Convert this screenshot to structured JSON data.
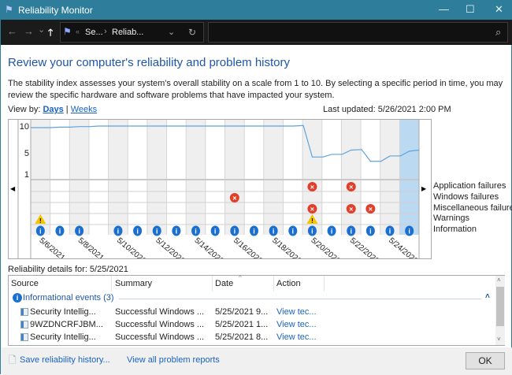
{
  "window": {
    "title": "Reliability Monitor",
    "minimize": "—",
    "maximize": "☐",
    "close": "✕"
  },
  "nav": {
    "back": "←",
    "forward": "→",
    "recent": "⌄",
    "up": "🡑",
    "crumb_sep": "«",
    "crumb1": "Se...",
    "crumb2": "Reliab...",
    "dropdown": "⌄",
    "refresh": "↻",
    "search_icon": "⌕",
    "search_placeholder": ""
  },
  "heading": "Review your computer's reliability and problem history",
  "description": "The stability index assesses your system's overall stability on a scale from 1 to 10. By selecting a specific period in time, you may review the specific hardware and software problems that have impacted your system.",
  "view_by": {
    "label": "View by:",
    "days": "Days",
    "sep": "|",
    "weeks": "Weeks"
  },
  "last_updated": "Last updated: 5/26/2021 2:00 PM",
  "chart_data": {
    "type": "line",
    "y_ticks": [
      "10",
      "5",
      "1"
    ],
    "ylim": [
      0,
      10
    ],
    "dates": [
      "5/6/2021",
      "5/7/2021",
      "5/8/2021",
      "5/9/2021",
      "5/10/2021",
      "5/11/2021",
      "5/12/2021",
      "5/13/2021",
      "5/14/2021",
      "5/15/2021",
      "5/16/2021",
      "5/17/2021",
      "5/18/2021",
      "5/19/2021",
      "5/20/2021",
      "5/21/2021",
      "5/22/2021",
      "5/23/2021",
      "5/24/2021",
      "5/25/2021"
    ],
    "date_labels": [
      "5/6/2021",
      "5/8/2021",
      "5/10/2021",
      "5/12/2021",
      "5/14/2021",
      "5/16/2021",
      "5/18/2021",
      "5/20/2021",
      "5/22/2021",
      "5/24/2021"
    ],
    "stability": [
      9.7,
      9.8,
      9.9,
      10,
      10,
      10,
      10,
      10,
      10,
      10,
      10,
      10,
      10,
      10,
      4.2,
      4.7,
      5.5,
      3.4,
      4.4,
      5.3
    ],
    "selected": "5/25/2021",
    "rows": [
      {
        "label": "Application failures",
        "icon": "error",
        "dates": [
          "5/20/2021",
          "5/22/2021"
        ]
      },
      {
        "label": "Windows failures",
        "icon": "error",
        "dates": [
          "5/16/2021"
        ]
      },
      {
        "label": "Miscellaneous failures",
        "icon": "error",
        "dates": [
          "5/20/2021",
          "5/22/2021",
          "5/23/2021"
        ]
      },
      {
        "label": "Warnings",
        "icon": "warning",
        "dates": [
          "5/6/2021",
          "5/20/2021"
        ]
      },
      {
        "label": "Information",
        "icon": "info",
        "dates": [
          "5/6/2021",
          "5/7/2021",
          "5/8/2021",
          "5/10/2021",
          "5/11/2021",
          "5/12/2021",
          "5/13/2021",
          "5/14/2021",
          "5/15/2021",
          "5/16/2021",
          "5/17/2021",
          "5/18/2021",
          "5/19/2021",
          "5/20/2021",
          "5/21/2021",
          "5/22/2021",
          "5/23/2021",
          "5/24/2021",
          "5/25/2021"
        ]
      }
    ],
    "colors": {
      "line": "#5ea3dc",
      "selected": "#bcd9f2",
      "shade": "#efefef",
      "error": "#e0402a",
      "warning": "#f5c400",
      "info": "#1a6fd0"
    }
  },
  "details": {
    "label": "Reliability details for: 5/25/2021",
    "columns": [
      "Source",
      "Summary",
      "Date",
      "Action"
    ],
    "group": "Informational events (3)",
    "rows": [
      {
        "source": "Security Intellig...",
        "summary": "Successful Windows ...",
        "date": "5/25/2021 9...",
        "action": "View tec..."
      },
      {
        "source": "9WZDNCRFJBM...",
        "summary": "Successful Windows ...",
        "date": "5/25/2021 1...",
        "action": "View tec..."
      },
      {
        "source": "Security Intellig...",
        "summary": "Successful Windows ...",
        "date": "5/25/2021 8...",
        "action": "View tec..."
      }
    ]
  },
  "footer": {
    "save": "Save reliability history...",
    "view_all": "View all problem reports",
    "ok": "OK"
  }
}
